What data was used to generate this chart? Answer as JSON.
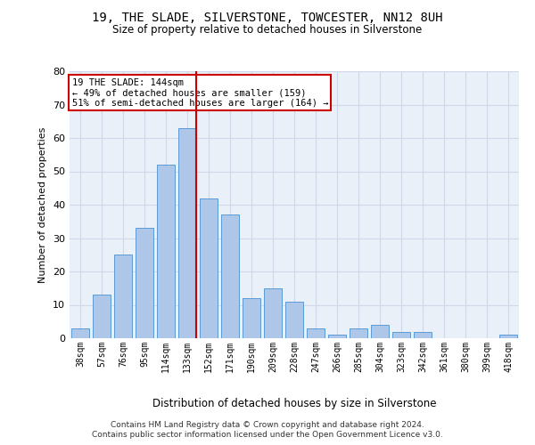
{
  "title": "19, THE SLADE, SILVERSTONE, TOWCESTER, NN12 8UH",
  "subtitle": "Size of property relative to detached houses in Silverstone",
  "xlabel": "Distribution of detached houses by size in Silverstone",
  "ylabel": "Number of detached properties",
  "categories": [
    "38sqm",
    "57sqm",
    "76sqm",
    "95sqm",
    "114sqm",
    "133sqm",
    "152sqm",
    "171sqm",
    "190sqm",
    "209sqm",
    "228sqm",
    "247sqm",
    "266sqm",
    "285sqm",
    "304sqm",
    "323sqm",
    "342sqm",
    "361sqm",
    "380sqm",
    "399sqm",
    "418sqm"
  ],
  "values": [
    3,
    13,
    25,
    33,
    52,
    63,
    42,
    37,
    12,
    15,
    11,
    3,
    1,
    3,
    4,
    2,
    2,
    0,
    0,
    0,
    1
  ],
  "bar_color": "#aec6e8",
  "bar_edge_color": "#5b9bd5",
  "highlight_index": 5,
  "vline_color": "#cc0000",
  "annotation_line1": "19 THE SLADE: 144sqm",
  "annotation_line2": "← 49% of detached houses are smaller (159)",
  "annotation_line3": "51% of semi-detached houses are larger (164) →",
  "annotation_box_color": "#ffffff",
  "annotation_box_edge": "#cc0000",
  "ylim": [
    0,
    80
  ],
  "yticks": [
    0,
    10,
    20,
    30,
    40,
    50,
    60,
    70,
    80
  ],
  "grid_color": "#d0d8e8",
  "bg_color": "#eaf0f8",
  "footer_line1": "Contains HM Land Registry data © Crown copyright and database right 2024.",
  "footer_line2": "Contains public sector information licensed under the Open Government Licence v3.0."
}
